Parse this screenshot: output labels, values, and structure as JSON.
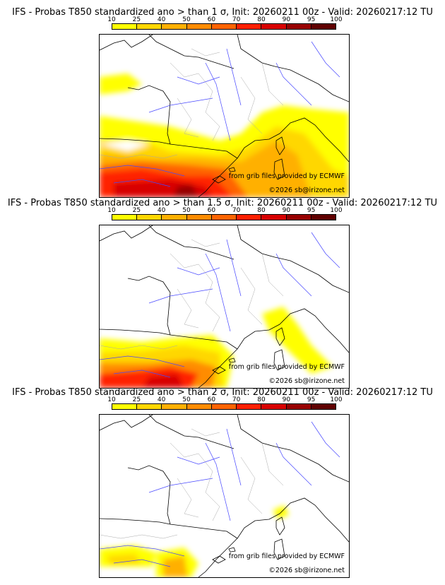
{
  "panels": [
    {
      "title": "IFS - Probas T850  standardized ano > than 1 σ, Init: 20260211 00z - Valid: 20260217:12 TU"
    },
    {
      "title": "IFS - Probas T850  standardized ano > than 1.5 σ, Init: 20260211 00z - Valid: 20260217:12 TU"
    },
    {
      "title": "IFS - Probas T850  standardized ano > than 2 σ, Init: 20260211 00z - Valid: 20260217:12 TU"
    }
  ],
  "colorbar": {
    "ticks": [
      "10",
      "25",
      "40",
      "50",
      "60",
      "70",
      "80",
      "90",
      "95",
      "100"
    ],
    "colors": [
      "#ffff00",
      "#ffd700",
      "#ffb000",
      "#ff8c00",
      "#ff6400",
      "#ff2000",
      "#d80000",
      "#980000",
      "#600000"
    ]
  },
  "credits": {
    "source": "from grib files provided by ECMWF",
    "copyright": "©2026 sb@irizone.net"
  }
}
